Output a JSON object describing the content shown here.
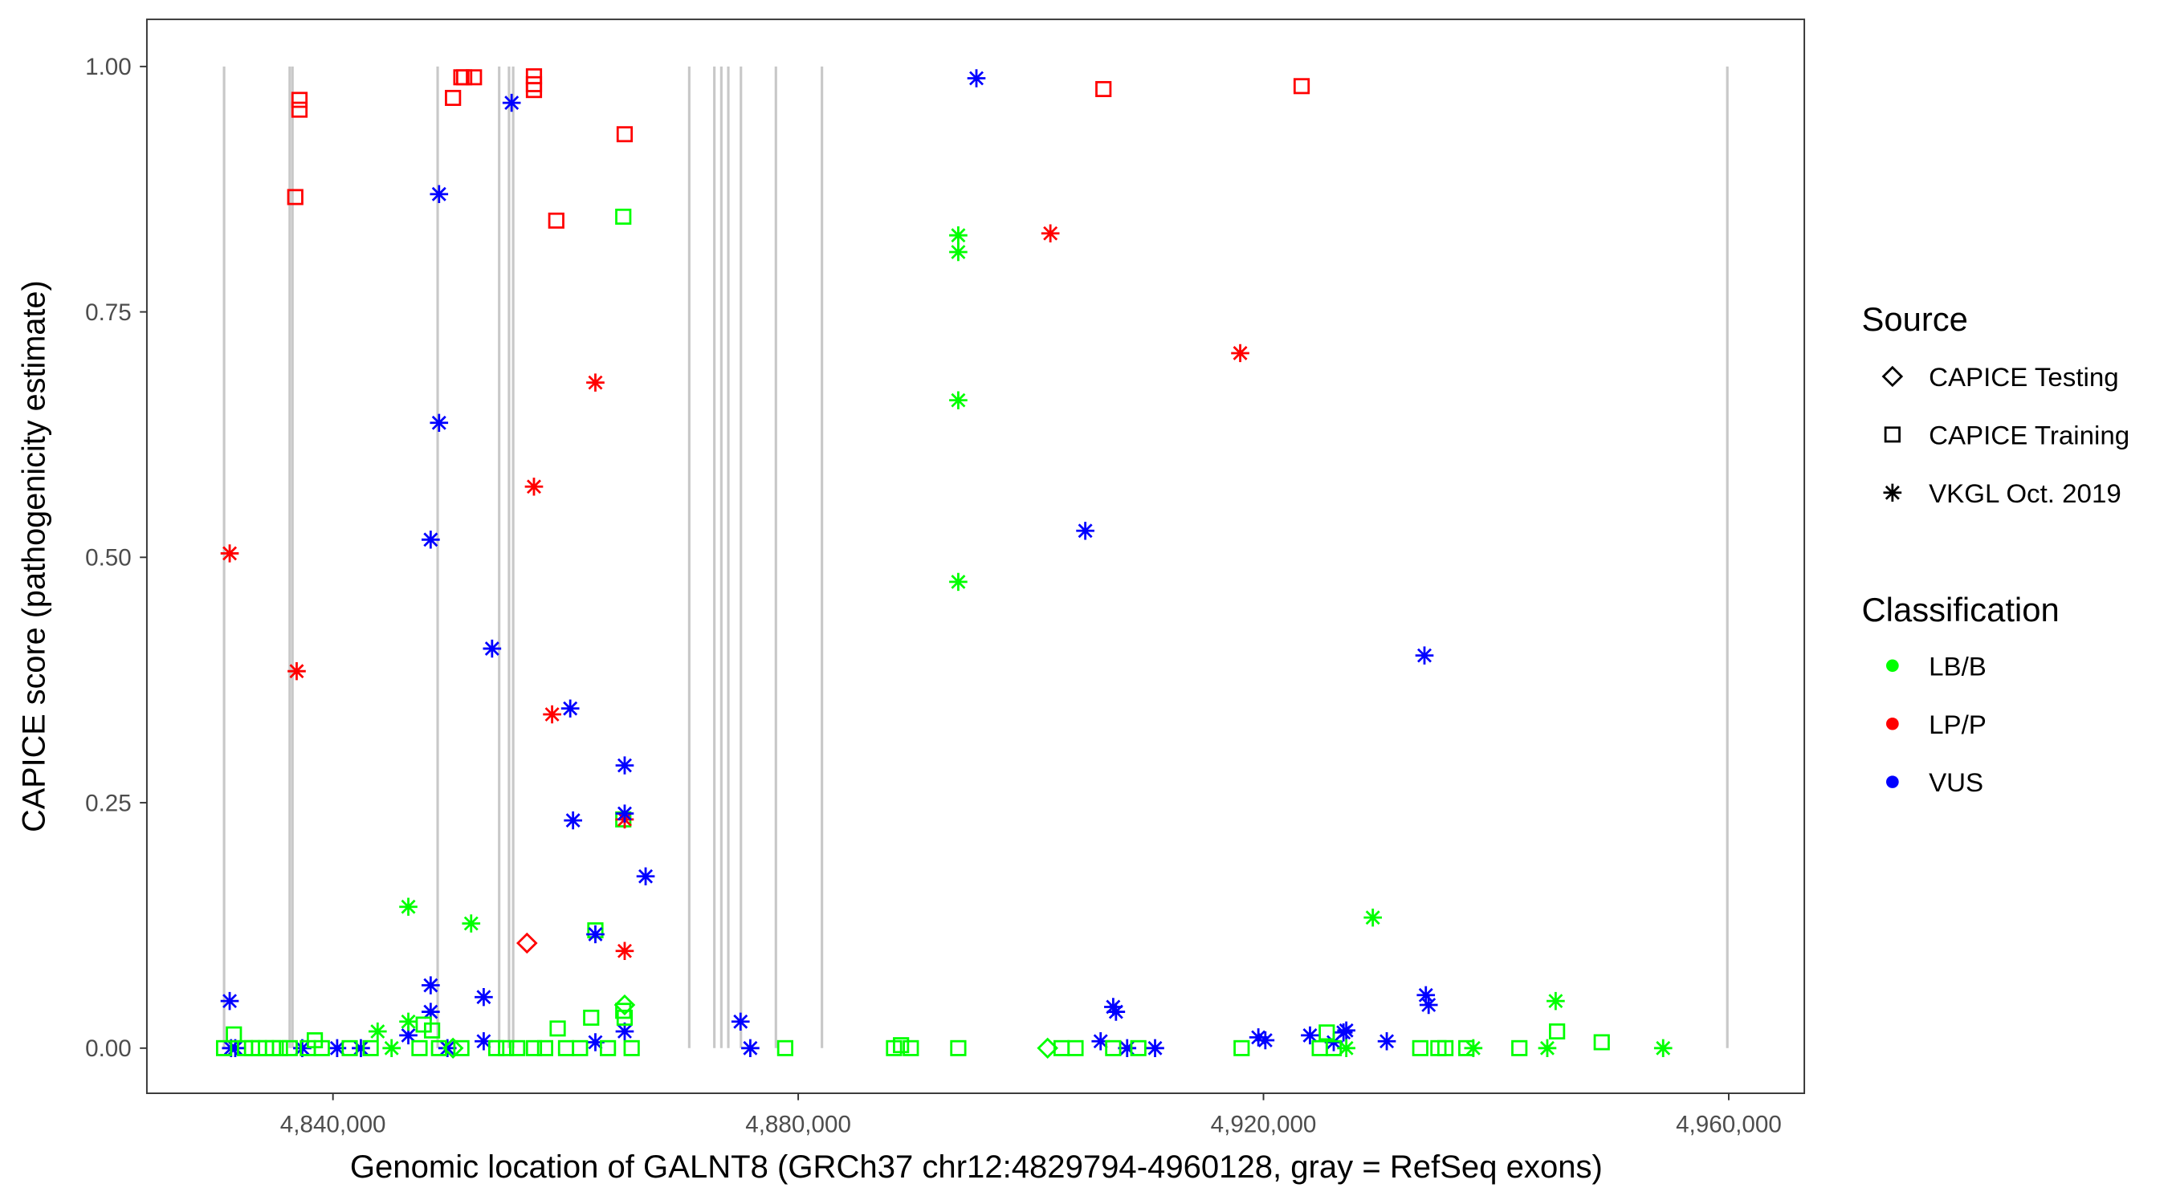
{
  "chart_data": {
    "type": "scatter",
    "xlabel": "Genomic location of GALNT8 (GRCh37 chr12:4829794-4960128, gray = RefSeq exons)",
    "ylabel": "CAPICE score (pathogenicity estimate)",
    "xlim": [
      4824000,
      4966500
    ],
    "ylim": [
      -0.046,
      1.048
    ],
    "x_ticks": [
      4840000,
      4880000,
      4920000,
      4960000
    ],
    "x_tick_labels": [
      "4,840,000",
      "4,880,000",
      "4,920,000",
      "4,960,000"
    ],
    "y_ticks": [
      0,
      0.25,
      0.5,
      0.75,
      1.0
    ],
    "y_tick_labels": [
      "0.00",
      "0.25",
      "0.50",
      "0.75",
      "1.00"
    ],
    "grid": false,
    "exons": [
      4830640,
      4836280,
      4836520,
      4849000,
      4854290,
      4855135,
      4855495,
      4870630,
      4872790,
      4873390,
      4873990,
      4875075,
      4878080,
      4882040,
      4959880
    ],
    "colors": {
      "LB/B": "#00FF00",
      "LP/P": "#FF0000",
      "VUS": "#0000FF",
      "exon": "#C8C8C8"
    },
    "legend": {
      "position": "right",
      "source_title": "Source",
      "source_items": [
        "CAPICE Testing",
        "CAPICE Training",
        "VKGL Oct. 2019"
      ],
      "classification_title": "Classification",
      "classification_items": [
        "LB/B",
        "LP/P",
        "VUS"
      ]
    },
    "point_fields": [
      "position",
      "score",
      "source",
      "classification"
    ],
    "points": [
      [
        4837120,
        0.966,
        "train",
        "LP/P"
      ],
      [
        4837120,
        0.956,
        "train",
        "LP/P"
      ],
      [
        4836760,
        0.867,
        "train",
        "LP/P"
      ],
      [
        4851040,
        0.989,
        "train",
        "LP/P"
      ],
      [
        4851280,
        0.989,
        "train",
        "LP/P"
      ],
      [
        4852120,
        0.989,
        "train",
        "LP/P"
      ],
      [
        4850320,
        0.968,
        "train",
        "LP/P"
      ],
      [
        4857280,
        0.99,
        "train",
        "LP/P"
      ],
      [
        4857280,
        0.982,
        "train",
        "LP/P"
      ],
      [
        4857280,
        0.976,
        "train",
        "LP/P"
      ],
      [
        4865080,
        0.931,
        "train",
        "LP/P"
      ],
      [
        4859200,
        0.843,
        "train",
        "LP/P"
      ],
      [
        4906240,
        0.977,
        "train",
        "LP/P"
      ],
      [
        4923280,
        0.98,
        "train",
        "LP/P"
      ],
      [
        4864960,
        0.847,
        "train",
        "LB/B"
      ],
      [
        4864960,
        0.233,
        "train",
        "LB/B"
      ],
      [
        4862560,
        0.12,
        "train",
        "LB/B"
      ],
      [
        4831120,
        0.504,
        "vkgl",
        "LP/P"
      ],
      [
        4836880,
        0.384,
        "vkgl",
        "LP/P"
      ],
      [
        4862560,
        0.678,
        "vkgl",
        "LP/P"
      ],
      [
        4857280,
        0.572,
        "vkgl",
        "LP/P"
      ],
      [
        4858840,
        0.34,
        "vkgl",
        "LP/P"
      ],
      [
        4865080,
        0.099,
        "vkgl",
        "LP/P"
      ],
      [
        4865080,
        0.233,
        "vkgl",
        "LP/P"
      ],
      [
        4901680,
        0.83,
        "vkgl",
        "LP/P"
      ],
      [
        4918000,
        0.708,
        "vkgl",
        "LP/P"
      ],
      [
        4856680,
        0.107,
        "test",
        "LP/P"
      ],
      [
        4855360,
        0.963,
        "vkgl",
        "VUS"
      ],
      [
        4849120,
        0.87,
        "vkgl",
        "VUS"
      ],
      [
        4849120,
        0.637,
        "vkgl",
        "VUS"
      ],
      [
        4848400,
        0.518,
        "vkgl",
        "VUS"
      ],
      [
        4853680,
        0.407,
        "vkgl",
        "VUS"
      ],
      [
        4860400,
        0.346,
        "vkgl",
        "VUS"
      ],
      [
        4860640,
        0.232,
        "vkgl",
        "VUS"
      ],
      [
        4865080,
        0.288,
        "vkgl",
        "VUS"
      ],
      [
        4865080,
        0.239,
        "vkgl",
        "VUS"
      ],
      [
        4866880,
        0.175,
        "vkgl",
        "VUS"
      ],
      [
        4862560,
        0.116,
        "vkgl",
        "VUS"
      ],
      [
        4848400,
        0.064,
        "vkgl",
        "VUS"
      ],
      [
        4848400,
        0.037,
        "vkgl",
        "VUS"
      ],
      [
        4852960,
        0.052,
        "vkgl",
        "VUS"
      ],
      [
        4831120,
        0.048,
        "vkgl",
        "VUS"
      ],
      [
        4875040,
        0.027,
        "vkgl",
        "VUS"
      ],
      [
        4895320,
        0.988,
        "vkgl",
        "VUS"
      ],
      [
        4904680,
        0.527,
        "vkgl",
        "VUS"
      ],
      [
        4933840,
        0.4,
        "vkgl",
        "VUS"
      ],
      [
        4865080,
        0.017,
        "vkgl",
        "VUS"
      ],
      [
        4933960,
        0.054,
        "vkgl",
        "VUS"
      ],
      [
        4934200,
        0.044,
        "vkgl",
        "VUS"
      ],
      [
        4907080,
        0.042,
        "vkgl",
        "VUS"
      ],
      [
        4907320,
        0.037,
        "vkgl",
        "VUS"
      ],
      [
        4924000,
        0.013,
        "vkgl",
        "VUS"
      ],
      [
        4926880,
        0.016,
        "vkgl",
        "VUS"
      ],
      [
        4927120,
        0.018,
        "vkgl",
        "VUS"
      ],
      [
        4930600,
        0.007,
        "vkgl",
        "VUS"
      ],
      [
        4920160,
        0.008,
        "vkgl",
        "VUS"
      ],
      [
        4919560,
        0.011,
        "vkgl",
        "VUS"
      ],
      [
        4906000,
        0.007,
        "vkgl",
        "VUS"
      ],
      [
        4908280,
        0.0,
        "vkgl",
        "VUS"
      ],
      [
        4910680,
        0.0,
        "vkgl",
        "VUS"
      ],
      [
        4875880,
        0.0,
        "vkgl",
        "VUS"
      ],
      [
        4852960,
        0.007,
        "vkgl",
        "VUS"
      ],
      [
        4849840,
        0.0,
        "vkgl",
        "VUS"
      ],
      [
        4846480,
        0.013,
        "vkgl",
        "VUS"
      ],
      [
        4842400,
        0.0,
        "vkgl",
        "VUS"
      ],
      [
        4840360,
        0.0,
        "vkgl",
        "VUS"
      ],
      [
        4837360,
        0.0,
        "vkgl",
        "VUS"
      ],
      [
        4831600,
        0.0,
        "vkgl",
        "VUS"
      ],
      [
        4831240,
        0.0,
        "vkgl",
        "VUS"
      ],
      [
        4862560,
        0.006,
        "vkgl",
        "VUS"
      ],
      [
        4926040,
        0.006,
        "vkgl",
        "VUS"
      ],
      [
        4893760,
        0.828,
        "vkgl",
        "LB/B"
      ],
      [
        4893760,
        0.811,
        "vkgl",
        "LB/B"
      ],
      [
        4893760,
        0.66,
        "vkgl",
        "LB/B"
      ],
      [
        4893760,
        0.475,
        "vkgl",
        "LB/B"
      ],
      [
        4846480,
        0.144,
        "vkgl",
        "LB/B"
      ],
      [
        4851880,
        0.127,
        "vkgl",
        "LB/B"
      ],
      [
        4929400,
        0.133,
        "vkgl",
        "LB/B"
      ],
      [
        4945120,
        0.048,
        "vkgl",
        "LB/B"
      ],
      [
        4843840,
        0.017,
        "vkgl",
        "LB/B"
      ],
      [
        4846480,
        0.027,
        "vkgl",
        "LB/B"
      ],
      [
        4954360,
        0.0,
        "vkgl",
        "LB/B"
      ],
      [
        4938040,
        0.0,
        "vkgl",
        "LB/B"
      ],
      [
        4944400,
        0.0,
        "vkgl",
        "LB/B"
      ],
      [
        4927120,
        0.0,
        "vkgl",
        "LB/B"
      ],
      [
        4845040,
        0.0,
        "vkgl",
        "LB/B"
      ],
      [
        4865080,
        0.044,
        "test",
        "LB/B"
      ],
      [
        4901440,
        0.0,
        "test",
        "LB/B"
      ],
      [
        4850320,
        0.0,
        "test",
        "LB/B"
      ],
      [
        4831480,
        0.014,
        "train",
        "LB/B"
      ],
      [
        4847800,
        0.024,
        "train",
        "LB/B"
      ],
      [
        4848520,
        0.018,
        "train",
        "LB/B"
      ],
      [
        4859320,
        0.02,
        "train",
        "LB/B"
      ],
      [
        4862200,
        0.031,
        "train",
        "LB/B"
      ],
      [
        4865080,
        0.031,
        "train",
        "LB/B"
      ],
      [
        4864960,
        0.038,
        "train",
        "LB/B"
      ],
      [
        4925440,
        0.016,
        "train",
        "LB/B"
      ],
      [
        4945240,
        0.017,
        "train",
        "LB/B"
      ],
      [
        4949080,
        0.006,
        "train",
        "LB/B"
      ],
      [
        4830640,
        0.0,
        "train",
        "LB/B"
      ],
      [
        4832440,
        0.0,
        "train",
        "LB/B"
      ],
      [
        4833040,
        0.0,
        "train",
        "LB/B"
      ],
      [
        4833640,
        0.0,
        "train",
        "LB/B"
      ],
      [
        4834240,
        0.0,
        "train",
        "LB/B"
      ],
      [
        4834840,
        0.0,
        "train",
        "LB/B"
      ],
      [
        4835440,
        0.0,
        "train",
        "LB/B"
      ],
      [
        4836280,
        0.0,
        "train",
        "LB/B"
      ],
      [
        4837840,
        0.0,
        "train",
        "LB/B"
      ],
      [
        4838440,
        0.008,
        "train",
        "LB/B"
      ],
      [
        4839040,
        0.0,
        "train",
        "LB/B"
      ],
      [
        4841440,
        0.0,
        "train",
        "LB/B"
      ],
      [
        4843240,
        0.0,
        "train",
        "LB/B"
      ],
      [
        4847440,
        0.0,
        "train",
        "LB/B"
      ],
      [
        4849120,
        0.0,
        "train",
        "LB/B"
      ],
      [
        4851040,
        0.0,
        "train",
        "LB/B"
      ],
      [
        4854040,
        0.0,
        "train",
        "LB/B"
      ],
      [
        4854880,
        0.0,
        "train",
        "LB/B"
      ],
      [
        4855840,
        0.0,
        "train",
        "LB/B"
      ],
      [
        4857280,
        0.0,
        "train",
        "LB/B"
      ],
      [
        4858240,
        0.0,
        "train",
        "LB/B"
      ],
      [
        4860040,
        0.0,
        "train",
        "LB/B"
      ],
      [
        4861240,
        0.0,
        "train",
        "LB/B"
      ],
      [
        4863640,
        0.0,
        "train",
        "LB/B"
      ],
      [
        4865680,
        0.0,
        "train",
        "LB/B"
      ],
      [
        4878880,
        0.0,
        "train",
        "LB/B"
      ],
      [
        4888240,
        0.0,
        "train",
        "LB/B"
      ],
      [
        4888840,
        0.003,
        "train",
        "LB/B"
      ],
      [
        4889680,
        0.0,
        "train",
        "LB/B"
      ],
      [
        4893760,
        0.0,
        "train",
        "LB/B"
      ],
      [
        4902640,
        0.0,
        "train",
        "LB/B"
      ],
      [
        4903840,
        0.0,
        "train",
        "LB/B"
      ],
      [
        4907080,
        0.0,
        "train",
        "LB/B"
      ],
      [
        4909240,
        0.0,
        "train",
        "LB/B"
      ],
      [
        4918120,
        0.0,
        "train",
        "LB/B"
      ],
      [
        4924840,
        0.0,
        "train",
        "LB/B"
      ],
      [
        4926040,
        0.0,
        "train",
        "LB/B"
      ],
      [
        4933480,
        0.0,
        "train",
        "LB/B"
      ],
      [
        4935040,
        0.0,
        "train",
        "LB/B"
      ],
      [
        4935640,
        0.0,
        "train",
        "LB/B"
      ],
      [
        4937440,
        0.0,
        "train",
        "LB/B"
      ],
      [
        4942000,
        0.0,
        "train",
        "LB/B"
      ]
    ]
  }
}
